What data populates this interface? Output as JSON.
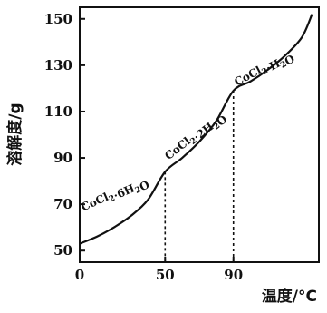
{
  "chart_data": {
    "type": "line",
    "title": "",
    "xlabel": "温度/°C",
    "ylabel": "溶解度/g",
    "xlim": [
      0,
      140
    ],
    "ylim": [
      45,
      155
    ],
    "x_ticks": [
      "0",
      "50",
      "90"
    ],
    "y_ticks": [
      "50",
      "70",
      "90",
      "110",
      "130",
      "150"
    ],
    "x_tick_values": [
      0,
      50,
      90
    ],
    "y_tick_values": [
      50,
      70,
      90,
      110,
      130,
      150
    ],
    "grid": false,
    "series": [
      {
        "x": [
          0,
          10,
          20,
          30,
          40,
          50,
          60,
          70,
          80,
          90,
          100,
          110,
          120,
          130,
          136
        ],
        "y": [
          53,
          56,
          60,
          65,
          72,
          84,
          90,
          97,
          106,
          119,
          123,
          128,
          134,
          142,
          152
        ]
      }
    ],
    "transitions": [
      50,
      90
    ],
    "annotations": [
      {
        "label": "CoCl",
        "sub": "2",
        "suffix": "·6H",
        "sub2": "2",
        "tail": "O",
        "x": 2,
        "y": 67,
        "angle": -24
      },
      {
        "label": "CoCl",
        "sub": "2",
        "suffix": "·2H",
        "sub2": "2",
        "tail": "O",
        "x": 52,
        "y": 89,
        "angle": -38
      },
      {
        "label": "CoCl",
        "sub": "2",
        "suffix": "·H",
        "sub2": "2",
        "tail": "O",
        "x": 92,
        "y": 121,
        "angle": -28
      }
    ]
  }
}
